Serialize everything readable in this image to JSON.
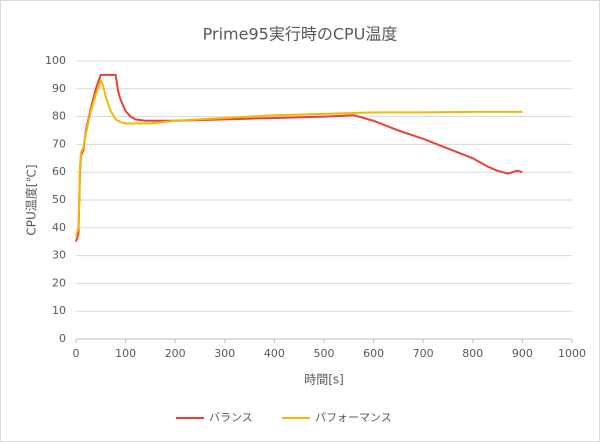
{
  "chart_data": {
    "type": "line",
    "title": "Prime95実行時のCPU温度",
    "xlabel": "時間[s]",
    "ylabel": "CPU温度[℃]",
    "xlim": [
      0,
      1000
    ],
    "xticks": [
      0,
      100,
      200,
      300,
      400,
      500,
      600,
      700,
      800,
      900,
      1000
    ],
    "ylim": [
      0,
      100
    ],
    "yticks": [
      0,
      10,
      20,
      30,
      40,
      50,
      60,
      70,
      80,
      90,
      100
    ],
    "grid": true,
    "legend": "bottom",
    "series": [
      {
        "name": "バランス",
        "color": "#e8413c",
        "x": [
          0,
          5,
          8,
          10,
          15,
          20,
          30,
          40,
          50,
          60,
          70,
          80,
          85,
          90,
          100,
          110,
          120,
          140,
          160,
          200,
          300,
          400,
          500,
          560,
          580,
          600,
          650,
          700,
          750,
          800,
          830,
          850,
          860,
          870,
          880,
          890,
          900
        ],
        "values": [
          35,
          38,
          60,
          66,
          68,
          75,
          83,
          90,
          95,
          95,
          95,
          95,
          89,
          86,
          82,
          80,
          79,
          78.5,
          78.5,
          78.5,
          79,
          79.5,
          80,
          80.5,
          79.5,
          78.5,
          75,
          72,
          68.5,
          65,
          62,
          60.5,
          60,
          59.5,
          60,
          60.5,
          60
        ]
      },
      {
        "name": "パフォーマンス",
        "color": "#f5b800",
        "x": [
          0,
          5,
          8,
          10,
          15,
          20,
          30,
          40,
          50,
          55,
          60,
          70,
          80,
          90,
          100,
          150,
          200,
          300,
          400,
          500,
          600,
          700,
          800,
          900
        ],
        "values": [
          37,
          40,
          62,
          67,
          69,
          74,
          82,
          88,
          93,
          91,
          87,
          82,
          79,
          78,
          77.5,
          77.5,
          78.5,
          79.5,
          80.5,
          81,
          81.5,
          81.5,
          81.7,
          81.7
        ]
      }
    ]
  }
}
